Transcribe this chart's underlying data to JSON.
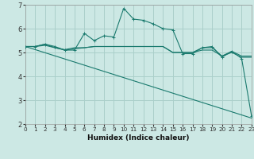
{
  "xlabel": "Humidex (Indice chaleur)",
  "background_color": "#cce8e4",
  "grid_color": "#aacfca",
  "line_color": "#1a7a6e",
  "ylim": [
    2,
    7
  ],
  "xlim": [
    0,
    23
  ],
  "yticks": [
    2,
    3,
    4,
    5,
    6,
    7
  ],
  "xticks": [
    0,
    1,
    2,
    3,
    4,
    5,
    6,
    7,
    8,
    9,
    10,
    11,
    12,
    13,
    14,
    15,
    16,
    17,
    18,
    19,
    20,
    21,
    22,
    23
  ],
  "series": [
    {
      "x": [
        0,
        1,
        2,
        3,
        4,
        5,
        6,
        7,
        8,
        9,
        10,
        11,
        12,
        13,
        14,
        15,
        16,
        17,
        18,
        19,
        20,
        21,
        22,
        23
      ],
      "y": [
        5.25,
        5.25,
        5.35,
        5.25,
        5.1,
        5.1,
        5.8,
        5.5,
        5.7,
        5.65,
        6.85,
        6.4,
        6.35,
        6.2,
        6.0,
        5.95,
        4.95,
        4.95,
        5.2,
        5.25,
        4.8,
        5.05,
        4.75,
        2.35
      ],
      "marker": "+"
    },
    {
      "x": [
        0,
        1,
        2,
        3,
        4,
        5,
        6,
        7,
        8,
        9,
        10,
        11,
        12,
        13,
        14,
        15,
        16,
        17,
        18,
        19,
        20,
        21,
        22,
        23
      ],
      "y": [
        5.25,
        5.25,
        5.35,
        5.2,
        5.12,
        5.2,
        5.2,
        5.25,
        5.25,
        5.25,
        5.25,
        5.25,
        5.25,
        5.25,
        5.25,
        5.0,
        5.0,
        5.0,
        5.2,
        5.2,
        4.85,
        5.05,
        4.85,
        4.85
      ],
      "marker": null
    },
    {
      "x": [
        0,
        1,
        2,
        3,
        4,
        5,
        6,
        7,
        8,
        9,
        10,
        11,
        12,
        13,
        14,
        15,
        16,
        17,
        18,
        19,
        20,
        21,
        22,
        23
      ],
      "y": [
        5.25,
        5.25,
        5.3,
        5.2,
        5.1,
        5.15,
        5.2,
        5.25,
        5.25,
        5.25,
        5.25,
        5.25,
        5.25,
        5.25,
        5.25,
        5.0,
        5.0,
        5.0,
        5.1,
        5.1,
        4.85,
        5.0,
        4.8,
        4.8
      ],
      "marker": null
    },
    {
      "x": [
        0,
        23
      ],
      "y": [
        5.25,
        2.25
      ],
      "marker": null
    }
  ]
}
